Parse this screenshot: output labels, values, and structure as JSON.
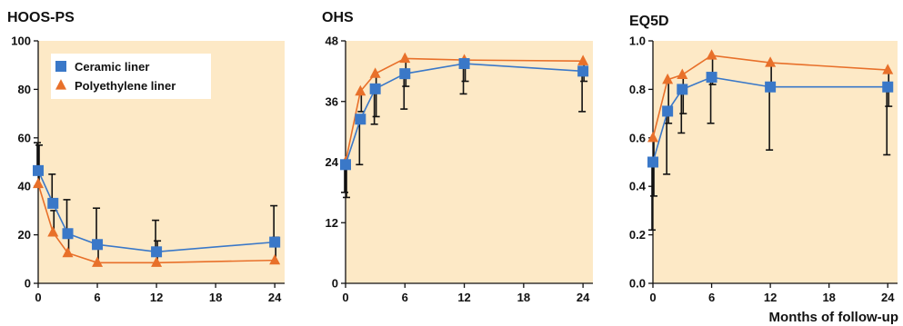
{
  "chart_data": [
    {
      "type": "line",
      "title": "HOOS-PS",
      "x": [
        0,
        1.5,
        3,
        6,
        12,
        24
      ],
      "xticks": [
        0,
        6,
        12,
        18,
        24
      ],
      "xlim": [
        0,
        25
      ],
      "ylim": [
        0,
        100
      ],
      "yticks": [
        "0",
        "20",
        "40",
        "60",
        "80",
        "100"
      ],
      "ytick_values": [
        0,
        20,
        40,
        60,
        80,
        100
      ],
      "xlabel": "",
      "legend": {
        "position": "top-left",
        "entries": [
          "Ceramic liner",
          "Polyethylene liner"
        ]
      },
      "series": [
        {
          "name": "Ceramic liner",
          "marker": "square",
          "color": "#3a78c8",
          "values": [
            46.5,
            33,
            20.5,
            16,
            13,
            17
          ],
          "error_upper": [
            58,
            45,
            34.5,
            31,
            26,
            32
          ],
          "error_lower": [
            46.5,
            33,
            20.5,
            16,
            13,
            17
          ]
        },
        {
          "name": "Polyethylene liner",
          "marker": "triangle",
          "color": "#e8702a",
          "values": [
            41,
            21,
            12.5,
            8.5,
            8.5,
            9.5
          ],
          "error_upper": [
            57,
            30,
            22,
            16,
            17.5,
            19
          ],
          "error_lower": [
            41,
            21,
            12.5,
            8.5,
            8.5,
            9.5
          ]
        }
      ]
    },
    {
      "type": "line",
      "title": "OHS",
      "x": [
        0,
        1.5,
        3,
        6,
        12,
        24
      ],
      "xticks": [
        0,
        6,
        12,
        18,
        24
      ],
      "xlim": [
        0,
        25
      ],
      "ylim": [
        0,
        48
      ],
      "yticks": [
        "0",
        "12",
        "24",
        "36",
        "48"
      ],
      "ytick_values": [
        0,
        12,
        24,
        36,
        48
      ],
      "xlabel": "",
      "series": [
        {
          "name": "Ceramic liner",
          "marker": "square",
          "color": "#3a78c8",
          "values": [
            23.5,
            32.5,
            38.5,
            41.5,
            43.5,
            42
          ],
          "error_upper": [
            23.5,
            32.5,
            38.5,
            41.5,
            43.5,
            42
          ],
          "error_lower": [
            18,
            23.5,
            31.5,
            34.5,
            37.5,
            34
          ]
        },
        {
          "name": "Polyethylene liner",
          "marker": "triangle",
          "color": "#e8702a",
          "values": [
            24,
            38,
            41.5,
            44.5,
            44.2,
            44
          ],
          "error_upper": [
            24,
            38,
            41.5,
            44.5,
            44.2,
            44
          ],
          "error_lower": [
            17,
            34,
            33,
            39,
            40,
            40
          ]
        }
      ]
    },
    {
      "type": "line",
      "title": "EQ5D",
      "x": [
        0,
        1.5,
        3,
        6,
        12,
        24
      ],
      "xticks": [
        0,
        6,
        12,
        18,
        24
      ],
      "xlim": [
        0,
        25
      ],
      "ylim": [
        0,
        1.0
      ],
      "yticks": [
        "0.0",
        "0.2",
        "0.4",
        "0.6",
        "0.8",
        "1.0"
      ],
      "ytick_values": [
        0,
        0.2,
        0.4,
        0.6,
        0.8,
        1.0
      ],
      "xlabel": "Months of follow-up",
      "series": [
        {
          "name": "Ceramic liner",
          "marker": "square",
          "color": "#3a78c8",
          "values": [
            0.5,
            0.71,
            0.8,
            0.85,
            0.81,
            0.81
          ],
          "error_upper": [
            0.5,
            0.71,
            0.8,
            0.85,
            0.81,
            0.81
          ],
          "error_lower": [
            0.22,
            0.45,
            0.62,
            0.66,
            0.55,
            0.53
          ]
        },
        {
          "name": "Polyethylene liner",
          "marker": "triangle",
          "color": "#e8702a",
          "values": [
            0.6,
            0.84,
            0.86,
            0.94,
            0.91,
            0.88
          ],
          "error_upper": [
            0.6,
            0.84,
            0.86,
            0.94,
            0.91,
            0.88
          ],
          "error_lower": [
            0.36,
            0.66,
            0.7,
            0.82,
            0.8,
            0.73
          ]
        }
      ]
    }
  ],
  "style": {
    "plot_background": "#fde9c6",
    "axis_color": "#111111",
    "error_bar_color": "#111111",
    "ceramic_color": "#3a78c8",
    "polyethylene_color": "#e8702a"
  }
}
